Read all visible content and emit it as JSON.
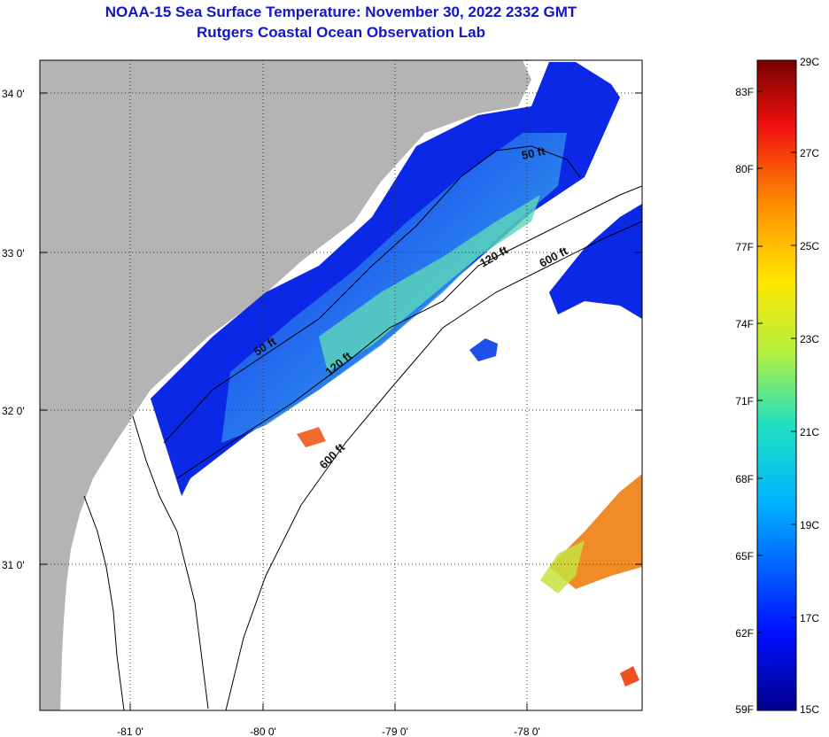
{
  "title": {
    "line1": "NOAA-15 Sea Surface Temperature:  November 30, 2022 2332 GMT",
    "line2": "Rutgers Coastal Ocean Observation Lab"
  },
  "map": {
    "longitude_labels": [
      "-81 0'",
      "-80 0'",
      "-79 0'",
      "-78 0'"
    ],
    "latitude_labels": [
      "34 0'",
      "33 0'",
      "32 0'",
      "31 0'"
    ],
    "contour_labels": [
      "50 ft",
      "120 ft",
      "600 ft",
      "50 ft",
      "120 ft",
      "600 ft"
    ],
    "colors": {
      "land": "#b4b4b4",
      "ocean_nodata": "#ffffff",
      "cold": "#0a1ee0",
      "mid": "#20c8e8",
      "warm": "#f07820"
    }
  },
  "colorbar": {
    "fahrenheit_labels": [
      "83F",
      "80F",
      "77F",
      "74F",
      "71F",
      "68F",
      "65F",
      "62F",
      "59F"
    ],
    "celsius_labels": [
      "29C",
      "27C",
      "25C",
      "23C",
      "21C",
      "19C",
      "17C",
      "15C"
    ],
    "range_f": [
      59,
      84.2
    ],
    "range_c": [
      15,
      29
    ]
  }
}
